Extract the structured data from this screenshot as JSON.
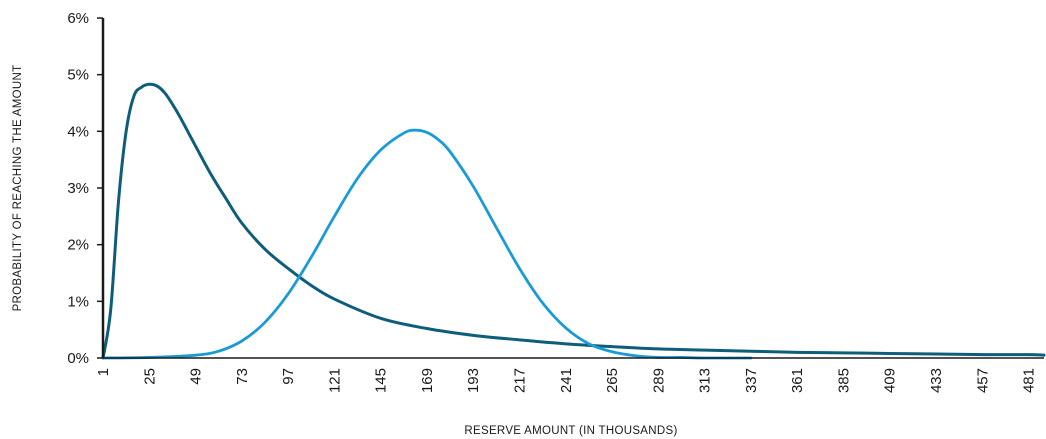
{
  "chart_data": {
    "type": "line",
    "title": "",
    "xlabel": "RESERVE AMOUNT (IN THOUSANDS)",
    "ylabel": "PROBABILITY OF REACHING THE AMOUNT",
    "x_ticks": [
      1,
      25,
      49,
      73,
      97,
      121,
      145,
      169,
      193,
      217,
      241,
      265,
      289,
      313,
      337,
      361,
      385,
      409,
      433,
      457,
      481
    ],
    "xlim": [
      1,
      489
    ],
    "y_ticks": [
      "0%",
      "1%",
      "2%",
      "3%",
      "4%",
      "5%",
      "6%"
    ],
    "ylim": [
      0,
      6
    ],
    "grid": false,
    "legend": "none",
    "series": [
      {
        "color": "#0e5d7a",
        "x": [
          1,
          5,
          9,
          13,
          17,
          21,
          25,
          29,
          33,
          37,
          41,
          49,
          57,
          65,
          73,
          85,
          97,
          109,
          121,
          145,
          169,
          193,
          217,
          241,
          265,
          289,
          313,
          337,
          361,
          385,
          409,
          433,
          457,
          481,
          489
        ],
        "y": [
          0.0,
          0.85,
          2.75,
          4.0,
          4.62,
          4.78,
          4.83,
          4.8,
          4.68,
          4.48,
          4.25,
          3.74,
          3.24,
          2.8,
          2.38,
          1.92,
          1.58,
          1.28,
          1.04,
          0.7,
          0.52,
          0.4,
          0.32,
          0.25,
          0.2,
          0.16,
          0.14,
          0.12,
          0.1,
          0.09,
          0.08,
          0.07,
          0.06,
          0.06,
          0.05
        ]
      },
      {
        "color": "#1a9ad6",
        "x": [
          1,
          25,
          49,
          61,
          73,
          85,
          97,
          109,
          121,
          133,
          145,
          157,
          163,
          169,
          175,
          181,
          193,
          205,
          217,
          229,
          241,
          253,
          265,
          277,
          289,
          301,
          313,
          337
        ],
        "y": [
          0.0,
          0.01,
          0.05,
          0.12,
          0.3,
          0.63,
          1.13,
          1.78,
          2.5,
          3.17,
          3.67,
          3.97,
          4.02,
          3.98,
          3.85,
          3.64,
          3.03,
          2.3,
          1.58,
          0.97,
          0.53,
          0.25,
          0.11,
          0.04,
          0.01,
          0.01,
          0.0,
          0.0
        ]
      }
    ]
  }
}
